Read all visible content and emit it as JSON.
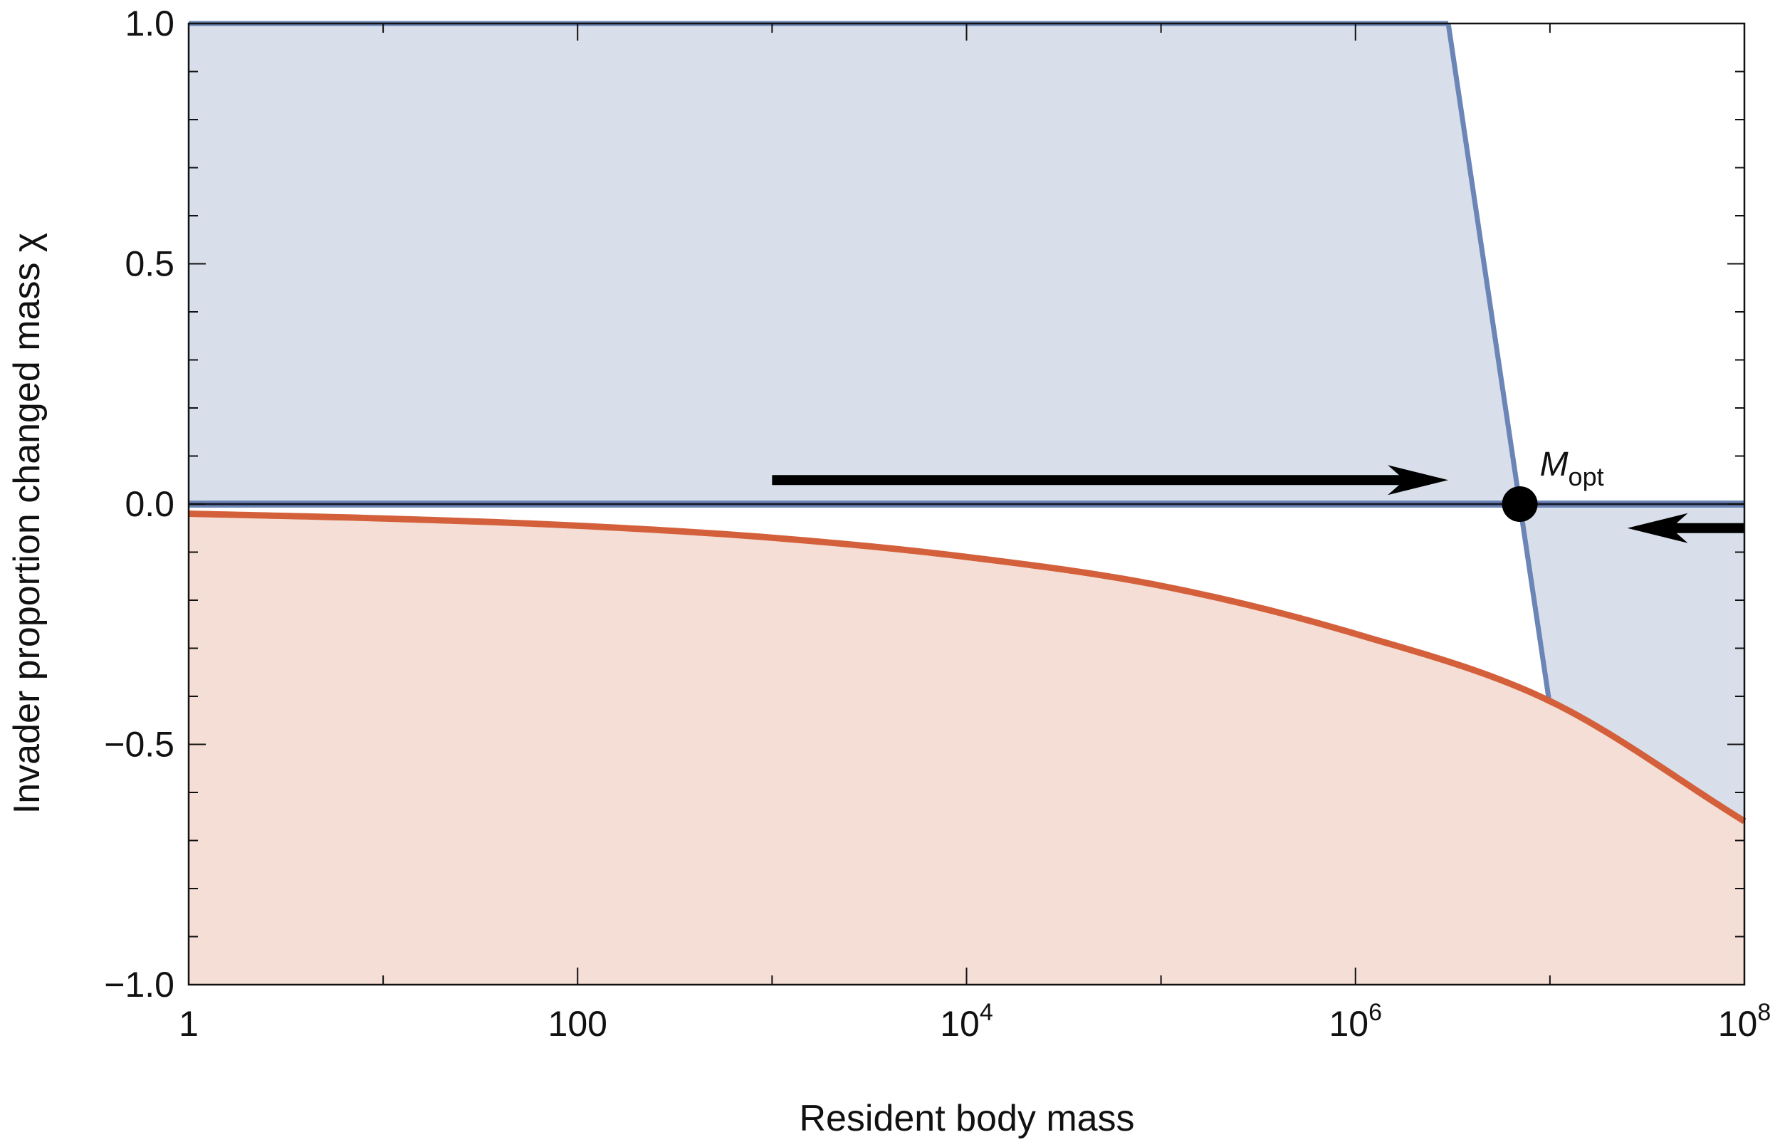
{
  "chart_data": {
    "type": "area",
    "x_scale": "log",
    "xlabel": "Resident body mass",
    "ylabel": "Invader proportion changed mass χ",
    "xlim": [
      1,
      100000000
    ],
    "ylim": [
      -1.0,
      1.0
    ],
    "x_ticks": [
      {
        "value": 1,
        "base": "1",
        "exp": ""
      },
      {
        "value": 100,
        "base": "100",
        "exp": ""
      },
      {
        "value": 10000,
        "base": "10",
        "exp": "4"
      },
      {
        "value": 1000000,
        "base": "10",
        "exp": "6"
      },
      {
        "value": 100000000,
        "base": "10",
        "exp": "8"
      }
    ],
    "y_ticks": [
      {
        "value": 1.0,
        "label": "1.0"
      },
      {
        "value": 0.5,
        "label": "0.5"
      },
      {
        "value": 0.0,
        "label": "0.0"
      },
      {
        "value": -0.5,
        "label": "−0.5"
      },
      {
        "value": -1.0,
        "label": "−1.0"
      }
    ],
    "grid": false,
    "series": [
      {
        "role": "invasion_boundary",
        "color": "#6a85b6",
        "fill": "#d9dfea",
        "points": [
          [
            1,
            1.0
          ],
          [
            3000000,
            1.0
          ],
          [
            7000000,
            0.0
          ],
          [
            14000000,
            -0.45
          ]
        ]
      },
      {
        "role": "lower_bound",
        "color": "#d4603b",
        "fill": "#f4ded5",
        "points": [
          [
            1,
            -0.02
          ],
          [
            10,
            -0.03
          ],
          [
            100,
            -0.045
          ],
          [
            1000,
            -0.07
          ],
          [
            10000,
            -0.11
          ],
          [
            100000,
            -0.17
          ],
          [
            1000000,
            -0.27
          ],
          [
            10000000,
            -0.41
          ],
          [
            100000000,
            -0.66
          ]
        ]
      }
    ],
    "equilibrium_point": {
      "x": 7000000,
      "y": 0.0,
      "label_main": "M",
      "label_sub": "opt"
    },
    "arrows": [
      {
        "from": 1000,
        "to": 3000000,
        "y": 0.05,
        "direction": "right"
      },
      {
        "from": 100000000,
        "to": 25000000,
        "y": -0.05,
        "direction": "left"
      }
    ],
    "colors": {
      "axis": "#111111",
      "marker": "#000000"
    }
  }
}
